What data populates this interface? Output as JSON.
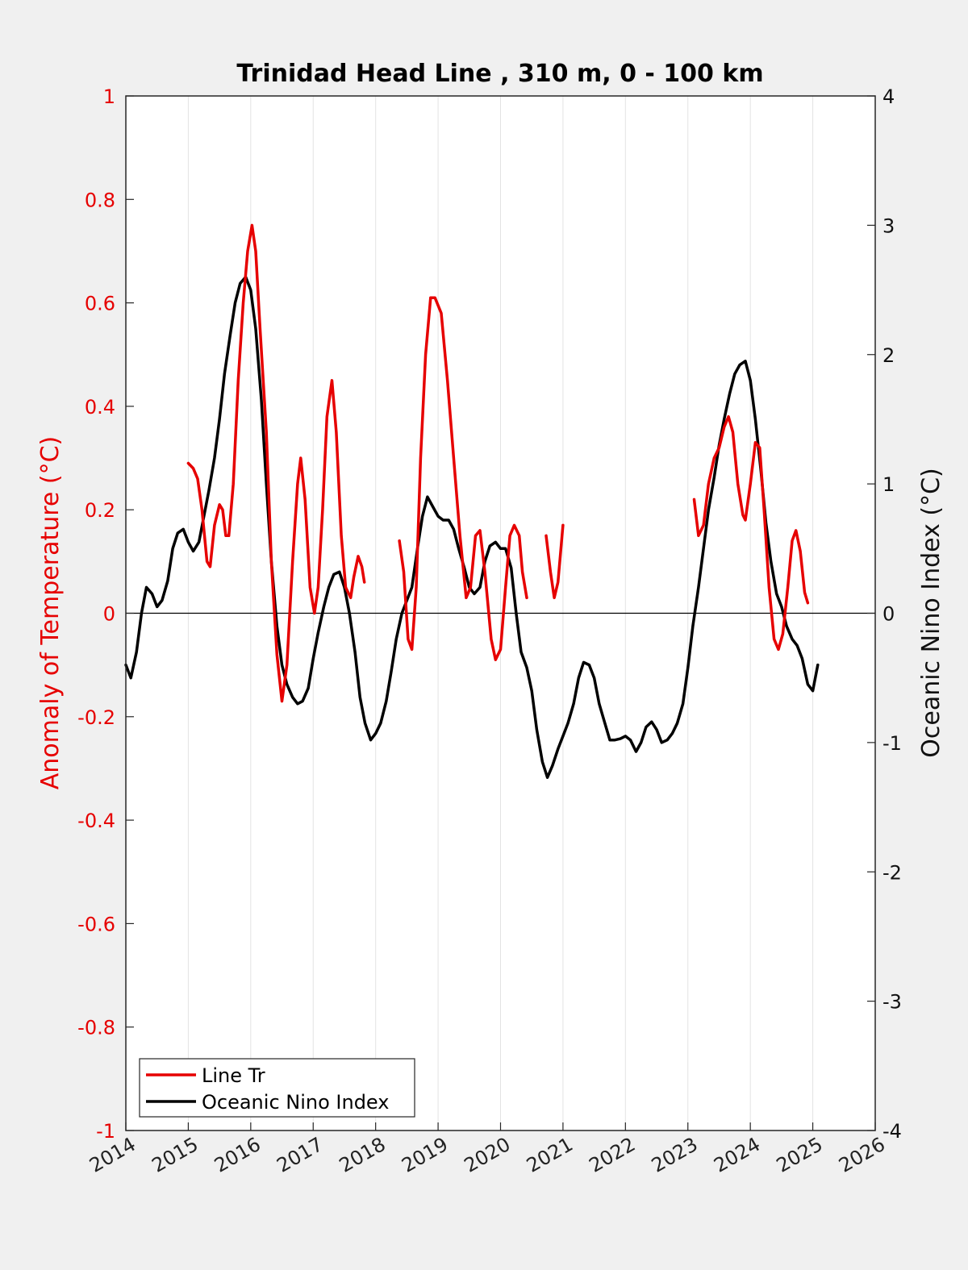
{
  "chart_data": {
    "type": "line",
    "title": "Trinidad Head Line , 310 m, 0 - 100 km",
    "ylabel_left": "Anomaly of Temperature (°C)",
    "ylabel_right": "Oceanic Nino Index (°C)",
    "xlim": [
      2014,
      2026
    ],
    "ylim_left": [
      -1,
      1
    ],
    "ylim_right": [
      -4,
      4
    ],
    "x_ticks": [
      2014,
      2015,
      2016,
      2017,
      2018,
      2019,
      2020,
      2021,
      2022,
      2023,
      2024,
      2025,
      2026
    ],
    "x_tick_labels": [
      "2014",
      "2015",
      "2016",
      "2017",
      "2018",
      "2019",
      "2020",
      "2021",
      "2022",
      "2023",
      "2024",
      "2025",
      "2026"
    ],
    "y_left_ticks": [
      1,
      0.8,
      0.6,
      0.4,
      0.2,
      0,
      -0.2,
      -0.4,
      -0.6,
      -0.8,
      -1
    ],
    "y_left_tick_labels": [
      "1",
      "0.8",
      "0.6",
      "0.4",
      "0.2",
      "0",
      "-0.2",
      "-0.4",
      "-0.6",
      "-0.8",
      "-1"
    ],
    "y_right_ticks": [
      4,
      3,
      2,
      1,
      0,
      -1,
      -2,
      -3,
      -4
    ],
    "y_right_tick_labels": [
      "4",
      "3",
      "2",
      "1",
      "0",
      "-1",
      "-2",
      "-3",
      "-4"
    ],
    "grid": "vertical",
    "zero_line": true,
    "legend": {
      "placement": "bottom-left",
      "entries": [
        {
          "label": "Line Tr",
          "color": "#e60000"
        },
        {
          "label": "Oceanic Nino Index",
          "color": "#000000"
        }
      ]
    },
    "series": [
      {
        "name": "Line Tr",
        "axis": "left",
        "color": "#e60000",
        "segments": [
          [
            [
              2015.0,
              0.29
            ],
            [
              2015.08,
              0.28
            ],
            [
              2015.15,
              0.26
            ],
            [
              2015.22,
              0.2
            ],
            [
              2015.3,
              0.1
            ],
            [
              2015.35,
              0.09
            ],
            [
              2015.42,
              0.17
            ],
            [
              2015.5,
              0.21
            ],
            [
              2015.55,
              0.2
            ],
            [
              2015.6,
              0.15
            ],
            [
              2015.65,
              0.15
            ],
            [
              2015.72,
              0.25
            ],
            [
              2015.8,
              0.45
            ],
            [
              2015.88,
              0.6
            ],
            [
              2015.95,
              0.7
            ],
            [
              2016.02,
              0.75
            ],
            [
              2016.08,
              0.7
            ],
            [
              2016.15,
              0.55
            ],
            [
              2016.25,
              0.35
            ],
            [
              2016.33,
              0.1
            ],
            [
              2016.42,
              -0.08
            ],
            [
              2016.5,
              -0.17
            ],
            [
              2016.58,
              -0.1
            ],
            [
              2016.67,
              0.1
            ],
            [
              2016.75,
              0.25
            ],
            [
              2016.8,
              0.3
            ],
            [
              2016.87,
              0.22
            ],
            [
              2016.95,
              0.05
            ],
            [
              2017.02,
              0.0
            ],
            [
              2017.08,
              0.05
            ],
            [
              2017.15,
              0.2
            ],
            [
              2017.22,
              0.38
            ],
            [
              2017.3,
              0.45
            ],
            [
              2017.37,
              0.35
            ],
            [
              2017.45,
              0.15
            ],
            [
              2017.52,
              0.05
            ],
            [
              2017.6,
              0.03
            ],
            [
              2017.65,
              0.07
            ],
            [
              2017.72,
              0.11
            ],
            [
              2017.78,
              0.09
            ],
            [
              2017.82,
              0.06
            ]
          ],
          [
            [
              2018.38,
              0.14
            ],
            [
              2018.45,
              0.08
            ],
            [
              2018.52,
              -0.05
            ],
            [
              2018.58,
              -0.07
            ],
            [
              2018.65,
              0.05
            ],
            [
              2018.72,
              0.3
            ],
            [
              2018.8,
              0.5
            ],
            [
              2018.88,
              0.61
            ],
            [
              2018.95,
              0.61
            ],
            [
              2019.05,
              0.58
            ],
            [
              2019.15,
              0.45
            ],
            [
              2019.25,
              0.3
            ],
            [
              2019.35,
              0.15
            ],
            [
              2019.45,
              0.03
            ],
            [
              2019.52,
              0.05
            ],
            [
              2019.6,
              0.15
            ],
            [
              2019.67,
              0.16
            ],
            [
              2019.75,
              0.08
            ],
            [
              2019.85,
              -0.05
            ],
            [
              2019.92,
              -0.09
            ],
            [
              2020.0,
              -0.07
            ],
            [
              2020.08,
              0.05
            ],
            [
              2020.15,
              0.15
            ],
            [
              2020.22,
              0.17
            ],
            [
              2020.3,
              0.15
            ],
            [
              2020.35,
              0.08
            ],
            [
              2020.42,
              0.03
            ]
          ],
          [
            [
              2020.73,
              0.15
            ],
            [
              2020.8,
              0.08
            ],
            [
              2020.86,
              0.03
            ],
            [
              2020.92,
              0.06
            ],
            [
              2021.0,
              0.17
            ]
          ],
          [
            [
              2023.1,
              0.22
            ],
            [
              2023.17,
              0.15
            ],
            [
              2023.25,
              0.17
            ],
            [
              2023.33,
              0.25
            ],
            [
              2023.42,
              0.3
            ],
            [
              2023.5,
              0.32
            ],
            [
              2023.58,
              0.36
            ],
            [
              2023.65,
              0.38
            ],
            [
              2023.72,
              0.35
            ],
            [
              2023.8,
              0.25
            ],
            [
              2023.88,
              0.19
            ],
            [
              2023.92,
              0.18
            ],
            [
              2024.0,
              0.25
            ],
            [
              2024.08,
              0.33
            ],
            [
              2024.15,
              0.32
            ],
            [
              2024.22,
              0.2
            ],
            [
              2024.3,
              0.05
            ],
            [
              2024.38,
              -0.05
            ],
            [
              2024.45,
              -0.07
            ],
            [
              2024.52,
              -0.04
            ],
            [
              2024.6,
              0.05
            ],
            [
              2024.67,
              0.14
            ],
            [
              2024.73,
              0.16
            ],
            [
              2024.8,
              0.12
            ],
            [
              2024.87,
              0.04
            ],
            [
              2024.92,
              0.02
            ]
          ]
        ]
      },
      {
        "name": "Oceanic Nino Index",
        "axis": "right",
        "color": "#000000",
        "segments": [
          [
            [
              2014.0,
              -0.4
            ],
            [
              2014.08,
              -0.5
            ],
            [
              2014.17,
              -0.3
            ],
            [
              2014.25,
              0.0
            ],
            [
              2014.33,
              0.2
            ],
            [
              2014.42,
              0.15
            ],
            [
              2014.5,
              0.05
            ],
            [
              2014.58,
              0.1
            ],
            [
              2014.67,
              0.25
            ],
            [
              2014.75,
              0.5
            ],
            [
              2014.83,
              0.62
            ],
            [
              2014.92,
              0.65
            ],
            [
              2015.0,
              0.55
            ],
            [
              2015.08,
              0.48
            ],
            [
              2015.17,
              0.55
            ],
            [
              2015.25,
              0.75
            ],
            [
              2015.33,
              0.95
            ],
            [
              2015.42,
              1.2
            ],
            [
              2015.5,
              1.5
            ],
            [
              2015.58,
              1.85
            ],
            [
              2015.67,
              2.15
            ],
            [
              2015.75,
              2.4
            ],
            [
              2015.83,
              2.55
            ],
            [
              2015.92,
              2.6
            ],
            [
              2016.0,
              2.5
            ],
            [
              2016.08,
              2.2
            ],
            [
              2016.17,
              1.65
            ],
            [
              2016.25,
              1.0
            ],
            [
              2016.33,
              0.4
            ],
            [
              2016.42,
              -0.1
            ],
            [
              2016.5,
              -0.4
            ],
            [
              2016.58,
              -0.55
            ],
            [
              2016.67,
              -0.65
            ],
            [
              2016.75,
              -0.7
            ],
            [
              2016.83,
              -0.68
            ],
            [
              2016.92,
              -0.58
            ],
            [
              2017.0,
              -0.35
            ],
            [
              2017.08,
              -0.15
            ],
            [
              2017.17,
              0.05
            ],
            [
              2017.25,
              0.2
            ],
            [
              2017.33,
              0.3
            ],
            [
              2017.42,
              0.32
            ],
            [
              2017.5,
              0.2
            ],
            [
              2017.58,
              0.0
            ],
            [
              2017.67,
              -0.3
            ],
            [
              2017.75,
              -0.65
            ],
            [
              2017.83,
              -0.85
            ],
            [
              2017.92,
              -0.98
            ],
            [
              2018.0,
              -0.93
            ],
            [
              2018.08,
              -0.85
            ],
            [
              2018.17,
              -0.68
            ],
            [
              2018.25,
              -0.45
            ],
            [
              2018.33,
              -0.2
            ],
            [
              2018.42,
              0.0
            ],
            [
              2018.5,
              0.1
            ],
            [
              2018.58,
              0.2
            ],
            [
              2018.67,
              0.5
            ],
            [
              2018.75,
              0.75
            ],
            [
              2018.83,
              0.9
            ],
            [
              2018.92,
              0.82
            ],
            [
              2019.0,
              0.75
            ],
            [
              2019.08,
              0.72
            ],
            [
              2019.17,
              0.72
            ],
            [
              2019.25,
              0.65
            ],
            [
              2019.33,
              0.5
            ],
            [
              2019.42,
              0.35
            ],
            [
              2019.5,
              0.2
            ],
            [
              2019.58,
              0.15
            ],
            [
              2019.67,
              0.2
            ],
            [
              2019.75,
              0.4
            ],
            [
              2019.83,
              0.52
            ],
            [
              2019.92,
              0.55
            ],
            [
              2020.0,
              0.5
            ],
            [
              2020.08,
              0.5
            ],
            [
              2020.17,
              0.35
            ],
            [
              2020.25,
              0.0
            ],
            [
              2020.33,
              -0.3
            ],
            [
              2020.42,
              -0.42
            ],
            [
              2020.5,
              -0.6
            ],
            [
              2020.58,
              -0.9
            ],
            [
              2020.67,
              -1.15
            ],
            [
              2020.75,
              -1.27
            ],
            [
              2020.83,
              -1.18
            ],
            [
              2020.92,
              -1.05
            ],
            [
              2021.0,
              -0.95
            ],
            [
              2021.08,
              -0.85
            ],
            [
              2021.17,
              -0.7
            ],
            [
              2021.25,
              -0.5
            ],
            [
              2021.33,
              -0.38
            ],
            [
              2021.42,
              -0.4
            ],
            [
              2021.5,
              -0.5
            ],
            [
              2021.58,
              -0.7
            ],
            [
              2021.67,
              -0.85
            ],
            [
              2021.75,
              -0.98
            ],
            [
              2021.83,
              -0.98
            ],
            [
              2021.92,
              -0.97
            ],
            [
              2022.0,
              -0.95
            ],
            [
              2022.08,
              -0.98
            ],
            [
              2022.17,
              -1.07
            ],
            [
              2022.25,
              -1.0
            ],
            [
              2022.33,
              -0.88
            ],
            [
              2022.42,
              -0.84
            ],
            [
              2022.5,
              -0.9
            ],
            [
              2022.58,
              -1.0
            ],
            [
              2022.67,
              -0.98
            ],
            [
              2022.75,
              -0.93
            ],
            [
              2022.83,
              -0.85
            ],
            [
              2022.92,
              -0.7
            ],
            [
              2023.0,
              -0.42
            ],
            [
              2023.08,
              -0.1
            ],
            [
              2023.17,
              0.2
            ],
            [
              2023.25,
              0.5
            ],
            [
              2023.33,
              0.8
            ],
            [
              2023.42,
              1.05
            ],
            [
              2023.5,
              1.3
            ],
            [
              2023.58,
              1.5
            ],
            [
              2023.67,
              1.7
            ],
            [
              2023.75,
              1.85
            ],
            [
              2023.83,
              1.92
            ],
            [
              2023.92,
              1.95
            ],
            [
              2024.0,
              1.8
            ],
            [
              2024.08,
              1.5
            ],
            [
              2024.17,
              1.1
            ],
            [
              2024.25,
              0.7
            ],
            [
              2024.33,
              0.4
            ],
            [
              2024.42,
              0.15
            ],
            [
              2024.5,
              0.05
            ],
            [
              2024.58,
              -0.1
            ],
            [
              2024.67,
              -0.2
            ],
            [
              2024.75,
              -0.25
            ],
            [
              2024.83,
              -0.35
            ],
            [
              2024.92,
              -0.55
            ],
            [
              2025.0,
              -0.6
            ],
            [
              2025.08,
              -0.4
            ]
          ]
        ]
      }
    ]
  }
}
